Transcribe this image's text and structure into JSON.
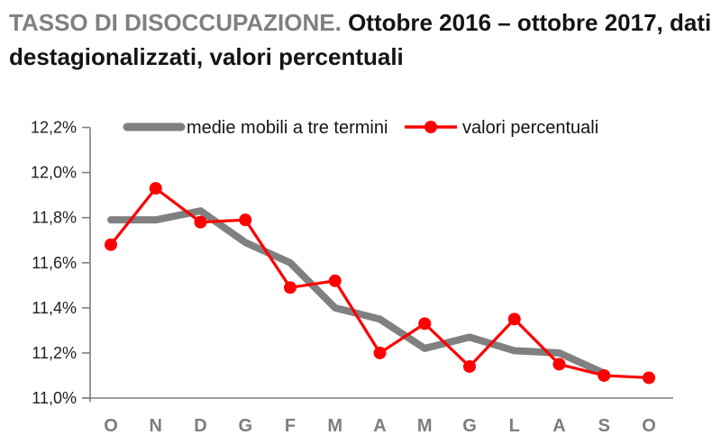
{
  "header": {
    "title_emphasis": "TASSO DI DISOCCUPAZIONE.",
    "title_line1_rest": "Ottobre 2016 – ottobre 2017, dati",
    "title_line2": "destagionalizzati, valori percentuali"
  },
  "legend": {
    "series1_label": "medie mobili a tre termini",
    "series2_label": "valori percentuali"
  },
  "colors": {
    "accent_red": "#fe0000",
    "line_gray": "#808080",
    "title_gray": "#808080",
    "axis_gray": "#7f7f7f",
    "text_black": "#141414"
  },
  "chart_data": {
    "type": "line",
    "title": "TASSO DI DISOCCUPAZIONE. Ottobre 2016 – ottobre 2017, dati destagionalizzati, valori percentuali",
    "categories": [
      "O",
      "N",
      "D",
      "G",
      "F",
      "M",
      "A",
      "M",
      "G",
      "L",
      "A",
      "S",
      "O"
    ],
    "ylim": [
      11.0,
      12.2
    ],
    "y_tick_values": [
      12.2,
      12.0,
      11.8,
      11.6,
      11.4,
      11.2,
      11.0
    ],
    "y_tick_labels": [
      "12,2%",
      "12,0%",
      "11,8%",
      "11,6%",
      "11,4%",
      "11,2%",
      "11,0%"
    ],
    "grid": false,
    "legend_position": "top",
    "series": [
      {
        "name": "medie mobili a tre termini",
        "color": "#808080",
        "marker": false,
        "values": [
          11.79,
          11.79,
          11.83,
          11.69,
          11.6,
          11.4,
          11.35,
          11.22,
          11.27,
          11.21,
          11.2,
          11.11
        ]
      },
      {
        "name": "valori percentuali",
        "color": "#fe0000",
        "marker": true,
        "values": [
          11.68,
          11.93,
          11.78,
          11.79,
          11.49,
          11.52,
          11.2,
          11.33,
          11.14,
          11.35,
          11.15,
          11.1,
          11.09
        ]
      }
    ]
  }
}
